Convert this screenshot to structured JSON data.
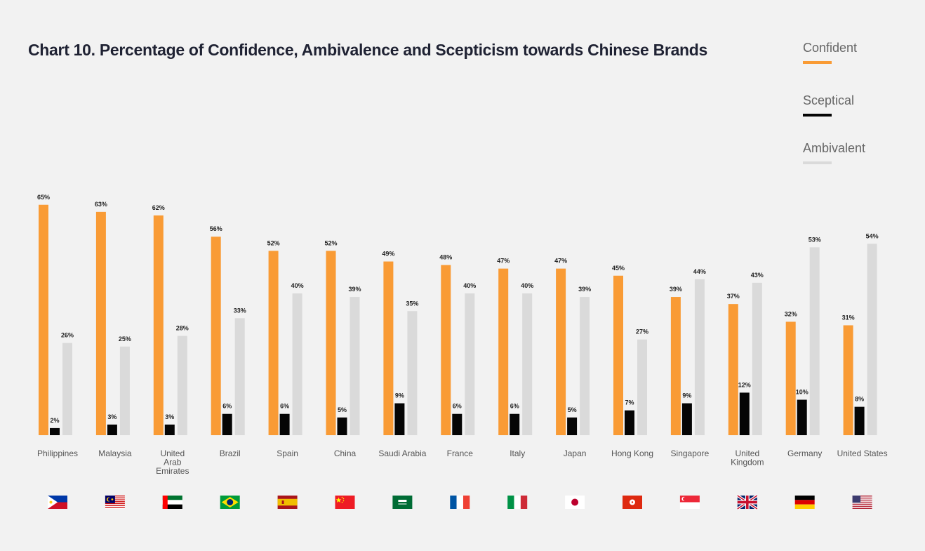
{
  "colors": {
    "background": "#f2f2f2",
    "confident": "#f99b35",
    "sceptical": "#050505",
    "ambivalent": "#dadada",
    "title": "#1f2233"
  },
  "chart_data": {
    "type": "bar",
    "title": "Chart 10.  Percentage of Confidence, Ambivalence and Scepticism towards Chinese Brands",
    "xlabel": "",
    "ylabel": "",
    "ylim": [
      0,
      65
    ],
    "grid": false,
    "legend_position": "top-right",
    "categories": [
      "Philippines",
      "Malaysia",
      "United Arab Emirates",
      "Brazil",
      "Spain",
      "China",
      "Saudi Arabia",
      "France",
      "Italy",
      "Japan",
      "Hong Kong",
      "Singapore",
      "United Kingdom",
      "Germany",
      "United States"
    ],
    "category_label_lines": [
      [
        "Philippines"
      ],
      [
        "Malaysia"
      ],
      [
        "United",
        "Arab",
        "Emirates"
      ],
      [
        "Brazil"
      ],
      [
        "Spain"
      ],
      [
        "China"
      ],
      [
        "Saudi Arabia"
      ],
      [
        "France"
      ],
      [
        "Italy"
      ],
      [
        "Japan"
      ],
      [
        "Hong Kong"
      ],
      [
        "Singapore"
      ],
      [
        "United",
        "Kingdom"
      ],
      [
        "Germany"
      ],
      [
        "United States"
      ]
    ],
    "series": [
      {
        "name": "Confident",
        "color": "#f99b35",
        "values": [
          65,
          63,
          62,
          56,
          52,
          52,
          49,
          48,
          47,
          47,
          45,
          39,
          37,
          32,
          31
        ]
      },
      {
        "name": "Sceptical",
        "color": "#050505",
        "values": [
          2,
          3,
          3,
          6,
          6,
          5,
          9,
          6,
          6,
          5,
          7,
          9,
          12,
          10,
          8
        ]
      },
      {
        "name": "Ambivalent",
        "color": "#dadada",
        "values": [
          26,
          25,
          28,
          33,
          40,
          39,
          35,
          40,
          40,
          39,
          27,
          44,
          43,
          53,
          54
        ]
      }
    ],
    "value_suffix": "%",
    "flags": [
      "philippines-flag-icon",
      "malaysia-flag-icon",
      "uae-flag-icon",
      "brazil-flag-icon",
      "spain-flag-icon",
      "china-flag-icon",
      "saudi-arabia-flag-icon",
      "france-flag-icon",
      "italy-flag-icon",
      "japan-flag-icon",
      "hong-kong-flag-icon",
      "singapore-flag-icon",
      "united-kingdom-flag-icon",
      "germany-flag-icon",
      "united-states-flag-icon"
    ]
  }
}
